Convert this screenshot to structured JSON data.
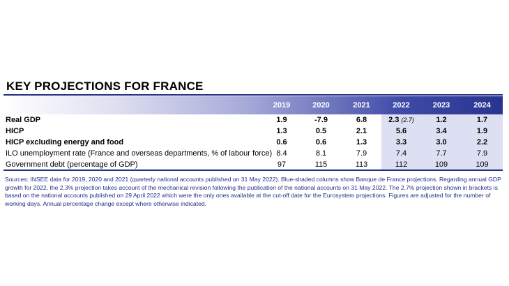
{
  "title": "KEY PROJECTIONS FOR FRANCE",
  "colors": {
    "accent": "#1f2f86",
    "projection_shade": "#dde0f2"
  },
  "table": {
    "years": [
      "2019",
      "2020",
      "2021",
      "2022",
      "2023",
      "2024"
    ],
    "rows": [
      {
        "label": "Real GDP",
        "values": [
          "1.9",
          "-7.9",
          "6.8",
          "2.3",
          "1.2",
          "1.7"
        ],
        "bracket": "(2.7)"
      },
      {
        "label": "HICP",
        "values": [
          "1.3",
          "0.5",
          "2.1",
          "5.6",
          "3.4",
          "1.9"
        ]
      },
      {
        "label": "HICP excluding energy and food",
        "values": [
          "0.6",
          "0.6",
          "1.3",
          "3.3",
          "3.0",
          "2.2"
        ]
      },
      {
        "label": "ILO unemployment rate (France and overseas departments, % of labour force)",
        "values": [
          "8.4",
          "8.1",
          "7.9",
          "7.4",
          "7.7",
          "7.9"
        ]
      },
      {
        "label": "Government debt (percentage of GDP)",
        "values": [
          "97",
          "115",
          "113",
          "112",
          "109",
          "109"
        ]
      }
    ]
  },
  "notes": "Sources: INSEE data for 2019, 2020 and 2021 (quarterly national accounts published on 31 May 2022). Blue-shaded columns show Banque de France projections. Regarding annual GDP growth for 2022, the 2.3% projection takes account of the mechanical revision following the publication of the national accounts on 31 May 2022. The 2.7% projection shown in brackets is based on the national accounts published on 29 April 2022 which were the only ones available at the cut-off date for the Eurosystem projections. Figures are adjusted for the number of working days. Annual percentage change except where otherwise indicated."
}
